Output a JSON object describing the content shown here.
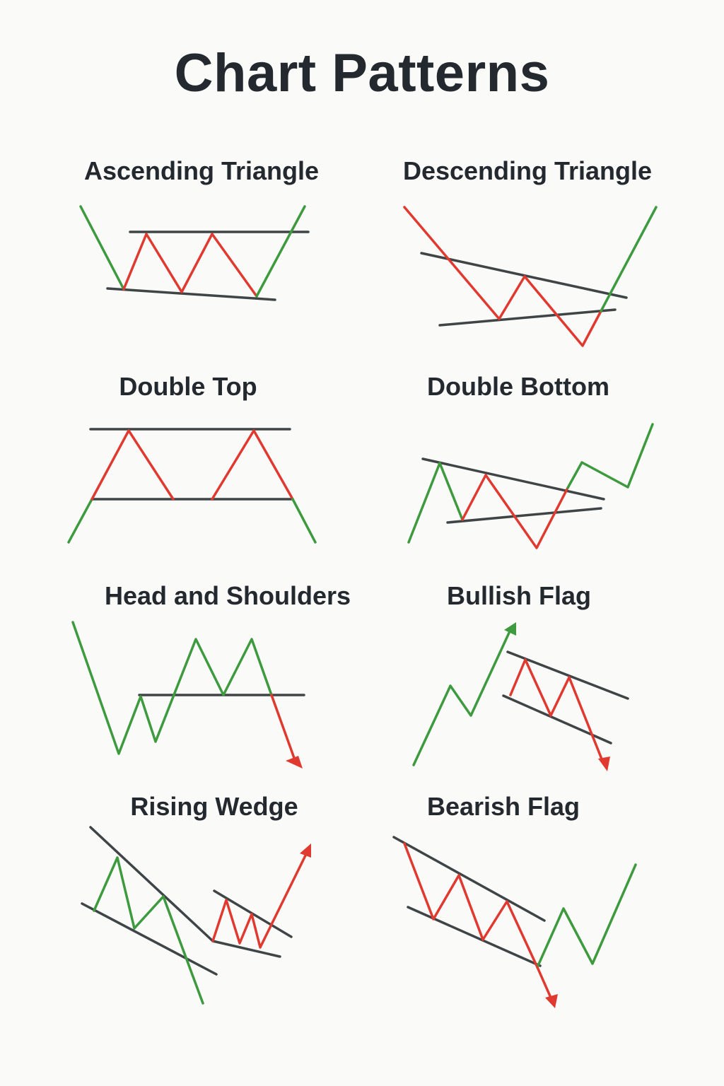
{
  "title": "Chart Patterns",
  "patterns": [
    {
      "id": "ascending-triangle",
      "label": "Ascending Triangle"
    },
    {
      "id": "descending-triangle",
      "label": "Descending Triangle"
    },
    {
      "id": "double-top",
      "label": "Double Top"
    },
    {
      "id": "double-bottom",
      "label": "Double Bottom"
    },
    {
      "id": "head-and-shoulders",
      "label": "Head and Shoulders"
    },
    {
      "id": "bullish-flag",
      "label": "Bullish Flag"
    },
    {
      "id": "rising-wedge",
      "label": "Rising Wedge"
    },
    {
      "id": "bearish-flag",
      "label": "Bearish Flag"
    }
  ],
  "colors": {
    "background": "#fafaf8",
    "text": "#23292e",
    "up_move": "#3e9a3e",
    "down_move": "#e03a30",
    "trendline": "#3f4547"
  }
}
